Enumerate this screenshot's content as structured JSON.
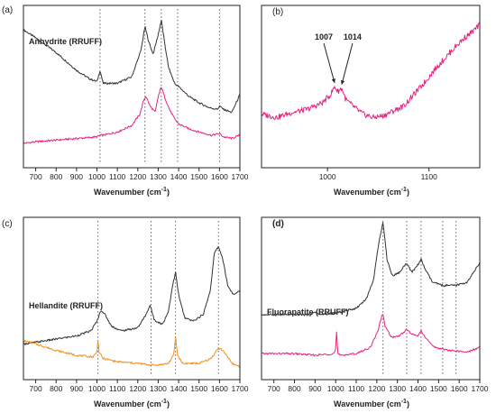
{
  "colors": {
    "black": "#333333",
    "magenta": "#e8237f",
    "orange": "#f0901e"
  },
  "chart_data": [
    {
      "type": "line",
      "panel_label": "(a)",
      "inset_label": "Anhydrite (RRUFF)",
      "xlabel": "Wavenumber (cm",
      "xlabel_sup": "-1",
      "xlabel_end": ")",
      "xlim": [
        640,
        1700
      ],
      "x_ticks": [
        700,
        800,
        900,
        1000,
        1100,
        1200,
        1300,
        1400,
        1500,
        1600,
        1700
      ],
      "x_tick_labels": [
        "700",
        "800",
        "900",
        "1000",
        "1100",
        "1200",
        "1300",
        "1400",
        "1500",
        "1600",
        "1700"
      ],
      "marker_lines": [
        1015,
        1235,
        1315,
        1395,
        1600
      ],
      "series": [
        {
          "color": "#333333",
          "x": [
            640,
            700,
            800,
            900,
            960,
            1000,
            1015,
            1030,
            1100,
            1170,
            1215,
            1235,
            1255,
            1275,
            1300,
            1315,
            1330,
            1350,
            1380,
            1400,
            1450,
            1500,
            1550,
            1590,
            1600,
            1620,
            1660,
            1700
          ],
          "y": [
            0.85,
            0.8,
            0.71,
            0.6,
            0.55,
            0.53,
            0.6,
            0.52,
            0.52,
            0.56,
            0.72,
            0.87,
            0.77,
            0.7,
            0.82,
            0.91,
            0.78,
            0.62,
            0.52,
            0.5,
            0.44,
            0.4,
            0.37,
            0.36,
            0.38,
            0.36,
            0.34,
            0.45
          ]
        },
        {
          "color": "#e8237f",
          "x": [
            640,
            700,
            800,
            900,
            1000,
            1015,
            1030,
            1100,
            1170,
            1210,
            1230,
            1240,
            1260,
            1285,
            1300,
            1315,
            1330,
            1355,
            1380,
            1400,
            1450,
            1500,
            1560,
            1600,
            1620,
            1660,
            1700
          ],
          "y": [
            0.15,
            0.16,
            0.17,
            0.18,
            0.19,
            0.2,
            0.2,
            0.22,
            0.26,
            0.33,
            0.42,
            0.44,
            0.38,
            0.34,
            0.44,
            0.5,
            0.44,
            0.36,
            0.3,
            0.27,
            0.24,
            0.22,
            0.2,
            0.21,
            0.19,
            0.18,
            0.2
          ]
        }
      ]
    },
    {
      "type": "line",
      "panel_label": "(b)",
      "xlabel": "Wavenumber (cm",
      "xlabel_sup": "-1",
      "xlabel_end": ")",
      "xlim": [
        935,
        1150
      ],
      "x_ticks": [
        1000,
        1100
      ],
      "x_tick_labels": [
        "1000",
        "1100"
      ],
      "annotations": [
        {
          "text": "1007",
          "x": 1007
        },
        {
          "text": "1014",
          "x": 1014
        }
      ],
      "series": [
        {
          "color": "#e8237f",
          "x": [
            935,
            950,
            965,
            980,
            995,
            1003,
            1007,
            1010,
            1014,
            1018,
            1025,
            1035,
            1045,
            1055,
            1065,
            1075,
            1085,
            1095,
            1105,
            1115,
            1125,
            1135,
            1145,
            1150
          ],
          "y": [
            0.33,
            0.31,
            0.34,
            0.36,
            0.4,
            0.45,
            0.5,
            0.47,
            0.49,
            0.42,
            0.38,
            0.33,
            0.31,
            0.32,
            0.35,
            0.38,
            0.45,
            0.52,
            0.6,
            0.67,
            0.74,
            0.8,
            0.85,
            0.88
          ]
        }
      ]
    },
    {
      "type": "line",
      "panel_label": "(c)",
      "inset_label": "Hellandite (RRUFF)",
      "xlabel": "Wavenumber (cm",
      "xlabel_sup": "-1",
      "xlabel_end": ")",
      "xlim": [
        640,
        1700
      ],
      "x_ticks": [
        700,
        800,
        900,
        1000,
        1100,
        1200,
        1300,
        1400,
        1500,
        1600,
        1700
      ],
      "x_tick_labels": [
        "700",
        "800",
        "900",
        "1000",
        "1100",
        "1200",
        "1300",
        "1400",
        "1500",
        "1600",
        "1700"
      ],
      "marker_lines": [
        1005,
        1265,
        1385,
        1595
      ],
      "series": [
        {
          "color": "#333333",
          "x": [
            640,
            700,
            800,
            900,
            970,
            1000,
            1020,
            1040,
            1070,
            1120,
            1200,
            1240,
            1260,
            1280,
            1320,
            1350,
            1370,
            1385,
            1400,
            1430,
            1470,
            1520,
            1555,
            1575,
            1595,
            1615,
            1640,
            1670,
            1700
          ],
          "y": [
            0.22,
            0.23,
            0.25,
            0.27,
            0.3,
            0.36,
            0.43,
            0.4,
            0.33,
            0.3,
            0.32,
            0.4,
            0.46,
            0.37,
            0.34,
            0.42,
            0.58,
            0.66,
            0.52,
            0.38,
            0.36,
            0.4,
            0.55,
            0.78,
            0.82,
            0.75,
            0.58,
            0.52,
            0.55
          ]
        },
        {
          "color": "#f0901e",
          "x": [
            640,
            700,
            800,
            900,
            980,
            1000,
            1005,
            1010,
            1030,
            1100,
            1200,
            1260,
            1300,
            1350,
            1375,
            1385,
            1395,
            1420,
            1500,
            1560,
            1590,
            1605,
            1630,
            1660,
            1700
          ],
          "y": [
            0.24,
            0.22,
            0.18,
            0.15,
            0.14,
            0.17,
            0.25,
            0.17,
            0.13,
            0.11,
            0.1,
            0.09,
            0.09,
            0.1,
            0.15,
            0.26,
            0.15,
            0.1,
            0.1,
            0.13,
            0.19,
            0.19,
            0.16,
            0.1,
            0.08
          ]
        }
      ]
    },
    {
      "type": "line",
      "panel_label": "(d)",
      "inset_label": "Fluorapatite (RRUFF)",
      "xlabel": "Wavenumber (cm",
      "xlabel_sup": "-1",
      "xlabel_end": ")",
      "xlim": [
        640,
        1700
      ],
      "x_ticks": [
        700,
        800,
        900,
        1000,
        1100,
        1200,
        1300,
        1400,
        1500,
        1600,
        1700
      ],
      "x_tick_labels": [
        "700",
        "800",
        "900",
        "1000",
        "1100",
        "1200",
        "1300",
        "1400",
        "1500",
        "1600",
        "1700"
      ],
      "marker_lines": [
        1230,
        1345,
        1415,
        1520,
        1585
      ],
      "series": [
        {
          "color": "#333333",
          "x": [
            640,
            700,
            800,
            880,
            900,
            920,
            1000,
            1100,
            1150,
            1185,
            1210,
            1230,
            1250,
            1275,
            1310,
            1345,
            1370,
            1395,
            1415,
            1435,
            1470,
            1520,
            1580,
            1640,
            1700
          ],
          "y": [
            0.4,
            0.4,
            0.4,
            0.4,
            0.42,
            0.4,
            0.41,
            0.44,
            0.5,
            0.62,
            0.85,
            0.97,
            0.74,
            0.64,
            0.66,
            0.72,
            0.66,
            0.7,
            0.74,
            0.68,
            0.6,
            0.58,
            0.58,
            0.6,
            0.72
          ]
        },
        {
          "color": "#e8237f",
          "x": [
            640,
            700,
            800,
            900,
            990,
            1000,
            1005,
            1010,
            1020,
            1100,
            1170,
            1205,
            1228,
            1240,
            1270,
            1310,
            1345,
            1370,
            1400,
            1415,
            1440,
            1480,
            1550,
            1640,
            1700
          ],
          "y": [
            0.16,
            0.16,
            0.16,
            0.15,
            0.16,
            0.18,
            0.31,
            0.16,
            0.15,
            0.16,
            0.2,
            0.3,
            0.41,
            0.33,
            0.26,
            0.27,
            0.31,
            0.28,
            0.27,
            0.3,
            0.25,
            0.2,
            0.18,
            0.17,
            0.2
          ]
        }
      ]
    }
  ]
}
